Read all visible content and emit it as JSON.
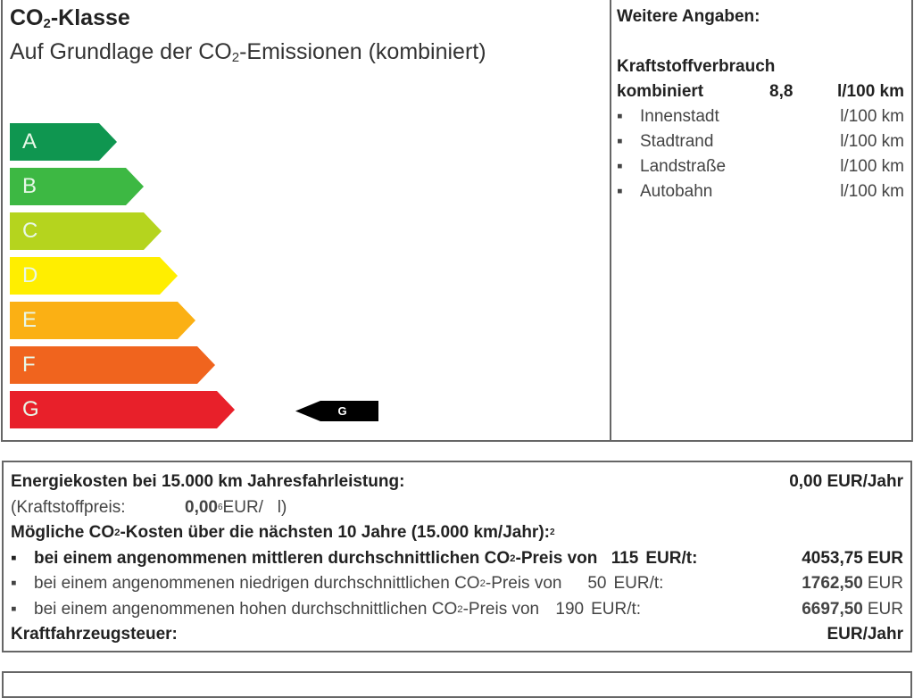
{
  "co2_class": {
    "title_pre": "CO",
    "title_sub": "2",
    "title_post": "-Klasse",
    "subtitle_pre": "Auf Grundlage der CO",
    "subtitle_sub": "2",
    "subtitle_post": "-Emissionen (kombiniert)",
    "classes": [
      {
        "label": "A",
        "color": "#0f9650"
      },
      {
        "label": "B",
        "color": "#3db843"
      },
      {
        "label": "C",
        "color": "#b5d41e"
      },
      {
        "label": "D",
        "color": "#ffee00"
      },
      {
        "label": "E",
        "color": "#fbb014"
      },
      {
        "label": "F",
        "color": "#f0641e"
      },
      {
        "label": "G",
        "color": "#e8202a"
      }
    ],
    "current_class": "G"
  },
  "further": {
    "heading": "Weitere Angaben:",
    "fuel_heading": "Kraftstoffverbrauch",
    "combined_label": "kombiniert",
    "combined_value": "8,8",
    "combined_unit": "l/100 km",
    "items": [
      {
        "label": "Innenstadt",
        "unit": "l/100 km"
      },
      {
        "label": "Stadtrand",
        "unit": "l/100 km"
      },
      {
        "label": "Landstraße",
        "unit": "l/100 km"
      },
      {
        "label": "Autobahn",
        "unit": "l/100 km"
      }
    ]
  },
  "costs": {
    "energy_label": "Energiekosten bei 15.000 km Jahresfahrleistung:",
    "energy_value": "0,00 EUR/Jahr",
    "fuel_price_label": "(Kraftstoffpreis:",
    "fuel_price_value": "0,00",
    "fuel_price_sup": "6",
    "fuel_price_unit": "EUR/   l)",
    "co2_heading_pre": "Mögliche CO",
    "co2_heading_sub": "2",
    "co2_heading_post": "-Kosten über die nächsten 10 Jahre (15.000 km/Jahr):",
    "co2_heading_sup": "2",
    "scenarios": [
      {
        "pre": "bei einem angenommenen mittleren durchschnittlichen CO",
        "post": "-Preis von",
        "price": "115",
        "unit": "EUR/t:",
        "value": "4053,75",
        "currency": "EUR"
      },
      {
        "pre": "bei einem angenommenen niedrigen durchschnittlichen CO",
        "post": "-Preis von",
        "price": "50",
        "unit": "EUR/t:",
        "value": "1762,50",
        "currency": "EUR"
      },
      {
        "pre": "bei einem angenommenen hohen durchschnittlichen CO",
        "post": "-Preis von",
        "price": "190",
        "unit": "EUR/t:",
        "value": "6697,50",
        "currency": "EUR"
      }
    ],
    "tax_label": "Kraftfahrzeugsteuer:",
    "tax_value": "EUR/Jahr"
  }
}
